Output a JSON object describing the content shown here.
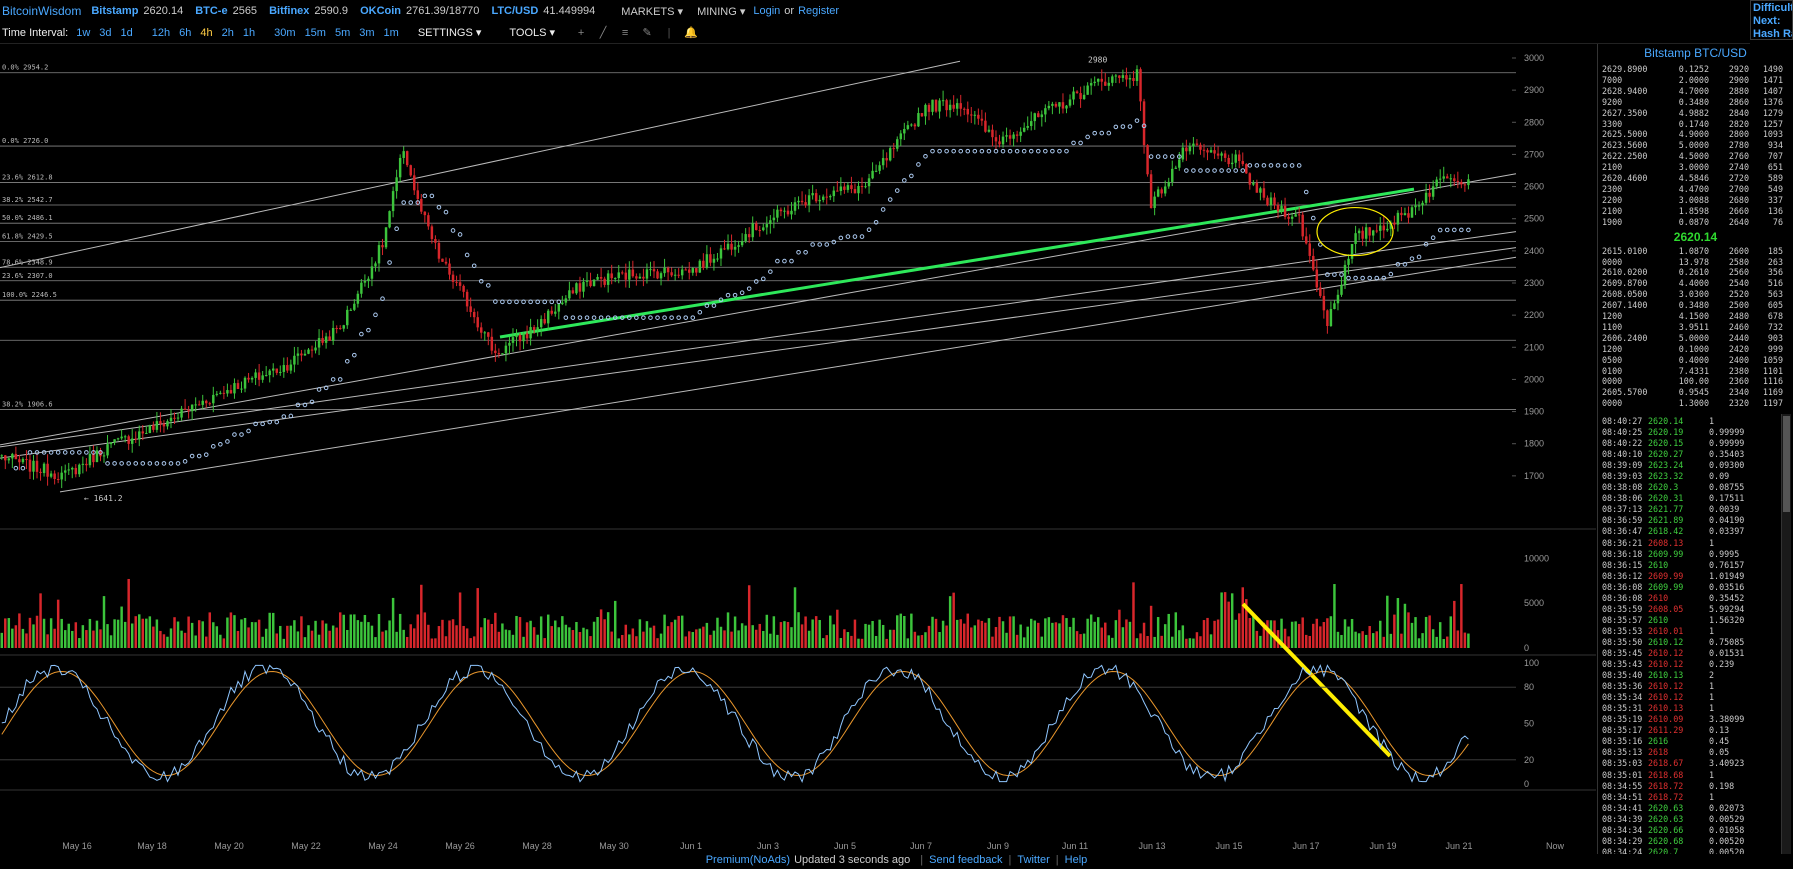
{
  "brand": "BitcoinWisdom",
  "tickers": [
    {
      "name": "Bitstamp",
      "price": "2620.14"
    },
    {
      "name": "BTC-e",
      "price": "2565"
    },
    {
      "name": "Bitfinex",
      "price": "2590.9"
    },
    {
      "name": "OKCoin",
      "price": "2761.39/18770"
    },
    {
      "name": "LTC/USD",
      "price": "41.449994"
    }
  ],
  "menus": {
    "markets": "MARKETS",
    "mining": "MINING",
    "login": "Login",
    "or": "or",
    "register": "Register"
  },
  "difficulty_box": {
    "l1": "Difficulty",
    "l2": "Next:",
    "l3": "Hash Rate"
  },
  "toolbar": {
    "time_interval_label": "Time Interval:",
    "intervals": [
      "1w",
      "3d",
      "1d",
      "12h",
      "6h",
      "4h",
      "2h",
      "1h",
      "30m",
      "15m",
      "5m",
      "3m",
      "1m"
    ],
    "selected_interval": "4h",
    "settings_label": "SETTINGS",
    "tools_label": "TOOLS"
  },
  "colors": {
    "up": "#3cc43c",
    "down": "#d8262b",
    "blue": "#4aa8ff",
    "green_trend": "#2ee85a",
    "yellow": "#ffee00",
    "grid": "#777777"
  },
  "chart_data": {
    "type": "candlestick",
    "exchange_pair": "Bitstamp BTC/USD",
    "price_axis": {
      "min": 1600,
      "max": 3000,
      "ticks": [
        1700,
        1800,
        1900,
        2000,
        2100,
        2200,
        2300,
        2400,
        2500,
        2600,
        2700,
        2800,
        2900,
        3000
      ]
    },
    "x_labels": [
      "May 16",
      "May 18",
      "May 20",
      "May 22",
      "May 24",
      "May 26",
      "May 28",
      "May 30",
      "Jun 1",
      "Jun 3",
      "Jun 5",
      "Jun 7",
      "Jun 9",
      "Jun 11",
      "Jun 13",
      "Jun 15",
      "Jun 17",
      "Jun 19",
      "Jun 21",
      "Now"
    ],
    "fib_levels": [
      {
        "label": "0.0% 2954.2",
        "value": 2954.2
      },
      {
        "label": "0.0% 2726.0",
        "value": 2726.0
      },
      {
        "label": "23.6% 2612.8",
        "value": 2612.8
      },
      {
        "label": "38.2% 2542.7",
        "value": 2542.7
      },
      {
        "label": "50.0% 2486.1",
        "value": 2486.1
      },
      {
        "label": "61.8% 2429.5",
        "value": 2429.5
      },
      {
        "label": "78.6% 2348.9",
        "value": 2348.9
      },
      {
        "label": "23.6% 2307.0",
        "value": 2307.0
      },
      {
        "label": "100.0% 2246.5",
        "value": 2246.5
      },
      {
        "label": "",
        "value": 2122.0
      },
      {
        "label": "38.2% 1906.6",
        "value": 1906.6
      }
    ],
    "annotations": {
      "high": "2980",
      "low": "← 1641.2"
    },
    "anchors": [
      [
        0,
        1760
      ],
      [
        8,
        1730
      ],
      [
        18,
        1700
      ],
      [
        30,
        1790
      ],
      [
        45,
        1860
      ],
      [
        62,
        1960
      ],
      [
        80,
        2040
      ],
      [
        96,
        2160
      ],
      [
        108,
        2420
      ],
      [
        114,
        2720
      ],
      [
        118,
        2550
      ],
      [
        124,
        2380
      ],
      [
        132,
        2240
      ],
      [
        140,
        2080
      ],
      [
        150,
        2150
      ],
      [
        165,
        2300
      ],
      [
        180,
        2330
      ],
      [
        196,
        2340
      ],
      [
        212,
        2460
      ],
      [
        230,
        2570
      ],
      [
        245,
        2600
      ],
      [
        262,
        2850
      ],
      [
        272,
        2860
      ],
      [
        282,
        2740
      ],
      [
        298,
        2840
      ],
      [
        312,
        2930
      ],
      [
        322,
        2950
      ],
      [
        326,
        2540
      ],
      [
        336,
        2720
      ],
      [
        350,
        2680
      ],
      [
        358,
        2560
      ],
      [
        368,
        2500
      ],
      [
        376,
        2180
      ],
      [
        384,
        2440
      ],
      [
        398,
        2510
      ],
      [
        410,
        2640
      ],
      [
        416,
        2620
      ]
    ],
    "volume_axis": {
      "ticks": [
        0,
        5000,
        10000
      ],
      "max": 12500
    },
    "stoch_axis": {
      "ticks": [
        0,
        20,
        50,
        80,
        100
      ]
    }
  },
  "orderbook": {
    "title": "Bitstamp BTC/USD",
    "asks": [
      [
        "2629.8900",
        "0.1252",
        "2920",
        "1490"
      ],
      [
        "7000",
        "2.0000",
        "2900",
        "1471"
      ],
      [
        "2628.9400",
        "4.7000",
        "2880",
        "1407"
      ],
      [
        "9200",
        "0.3480",
        "2860",
        "1376"
      ],
      [
        "2627.3500",
        "4.9882",
        "2840",
        "1279"
      ],
      [
        "3300",
        "0.1740",
        "2820",
        "1257"
      ],
      [
        "2625.5000",
        "4.9000",
        "2800",
        "1093"
      ],
      [
        "2623.5600",
        "5.0000",
        "2780",
        "934"
      ],
      [
        "2622.2500",
        "4.5000",
        "2760",
        "707"
      ],
      [
        "2100",
        "3.0000",
        "2740",
        "651"
      ],
      [
        "2620.4600",
        "4.5846",
        "2720",
        "589"
      ],
      [
        "2300",
        "4.4700",
        "2700",
        "549"
      ],
      [
        "2200",
        "3.0088",
        "2680",
        "337"
      ],
      [
        "2100",
        "1.8598",
        "2660",
        "136"
      ],
      [
        "1900",
        "0.0870",
        "2640",
        "76"
      ]
    ],
    "last_price": "2620.14",
    "bids": [
      [
        "2615.0100",
        "1.0870",
        "2600",
        "185"
      ],
      [
        "0000",
        "13.978",
        "2580",
        "263"
      ],
      [
        "2610.0200",
        "0.2610",
        "2560",
        "356"
      ],
      [
        "2609.8700",
        "4.4000",
        "2540",
        "516"
      ],
      [
        "2608.0500",
        "3.0300",
        "2520",
        "563"
      ],
      [
        "2607.1400",
        "0.3480",
        "2500",
        "605"
      ],
      [
        "1200",
        "4.1500",
        "2480",
        "678"
      ],
      [
        "1100",
        "3.9511",
        "2460",
        "732"
      ],
      [
        "2606.2400",
        "5.0000",
        "2440",
        "903"
      ],
      [
        "1200",
        "0.1000",
        "2420",
        "999"
      ],
      [
        "0500",
        "0.4000",
        "2400",
        "1059"
      ],
      [
        "0100",
        "7.4331",
        "2380",
        "1101"
      ],
      [
        "0000",
        "100.00",
        "2360",
        "1116"
      ],
      [
        "2605.5700",
        "0.9545",
        "2340",
        "1169"
      ],
      [
        "0000",
        "1.3000",
        "2320",
        "1197"
      ]
    ]
  },
  "trades": [
    [
      "08:40:27",
      "2620.14",
      "g",
      "1"
    ],
    [
      "08:40:25",
      "2620.19",
      "g",
      "0.99999"
    ],
    [
      "08:40:22",
      "2620.15",
      "g",
      "0.99999"
    ],
    [
      "08:40:10",
      "2620.27",
      "g",
      "0.35403"
    ],
    [
      "08:39:09",
      "2623.24",
      "g",
      "0.09300"
    ],
    [
      "08:39:03",
      "2623.32",
      "g",
      "0.09"
    ],
    [
      "08:38:08",
      "2620.3",
      "g",
      "0.08755"
    ],
    [
      "08:38:06",
      "2620.31",
      "g",
      "0.17511"
    ],
    [
      "08:37:13",
      "2621.77",
      "g",
      "0.0039"
    ],
    [
      "08:36:59",
      "2621.89",
      "g",
      "0.04190"
    ],
    [
      "08:36:47",
      "2618.42",
      "g",
      "0.03397"
    ],
    [
      "08:36:21",
      "2608.13",
      "r",
      "1"
    ],
    [
      "08:36:18",
      "2609.99",
      "g",
      "0.9995"
    ],
    [
      "08:36:15",
      "2610",
      "g",
      "0.76157"
    ],
    [
      "08:36:12",
      "2609.99",
      "r",
      "1.01949"
    ],
    [
      "08:36:08",
      "2609.99",
      "g",
      "0.03516"
    ],
    [
      "08:36:08",
      "2610",
      "r",
      "0.35452"
    ],
    [
      "08:35:59",
      "2608.05",
      "r",
      "5.99294"
    ],
    [
      "08:35:57",
      "2610",
      "g",
      "1.56320"
    ],
    [
      "08:35:53",
      "2610.01",
      "r",
      "1"
    ],
    [
      "08:35:50",
      "2610.12",
      "g",
      "0.75085"
    ],
    [
      "08:35:45",
      "2610.12",
      "r",
      "0.01531"
    ],
    [
      "08:35:43",
      "2610.12",
      "r",
      "0.239"
    ],
    [
      "08:35:40",
      "2610.13",
      "g",
      "2"
    ],
    [
      "08:35:36",
      "2610.12",
      "r",
      "1"
    ],
    [
      "08:35:34",
      "2610.12",
      "r",
      "1"
    ],
    [
      "08:35:31",
      "2610.13",
      "r",
      "1"
    ],
    [
      "08:35:19",
      "2610.09",
      "r",
      "3.38099"
    ],
    [
      "08:35:17",
      "2611.29",
      "r",
      "0.13"
    ],
    [
      "08:35:16",
      "2616",
      "g",
      "0.45"
    ],
    [
      "08:35:13",
      "2618",
      "r",
      "0.05"
    ],
    [
      "08:35:03",
      "2618.67",
      "r",
      "3.40923"
    ],
    [
      "08:35:01",
      "2618.68",
      "r",
      "1"
    ],
    [
      "08:34:55",
      "2618.72",
      "r",
      "0.198"
    ],
    [
      "08:34:51",
      "2618.72",
      "r",
      "1"
    ],
    [
      "08:34:41",
      "2620.63",
      "g",
      "0.02073"
    ],
    [
      "08:34:39",
      "2620.63",
      "g",
      "0.00529"
    ],
    [
      "08:34:34",
      "2620.66",
      "g",
      "0.01058"
    ],
    [
      "08:34:29",
      "2620.68",
      "g",
      "0.00520"
    ],
    [
      "08:34:24",
      "2620.7",
      "g",
      "0.00520"
    ],
    [
      "08:33:58",
      "2621.63",
      "g",
      "1.06917"
    ],
    [
      "08:33:54",
      "2621.74",
      "g",
      "0.087"
    ]
  ],
  "footer": {
    "premium": "Premium(NoAds)",
    "status": "Updated 3 seconds ago",
    "feedback": "Send feedback",
    "twitter": "Twitter",
    "help": "Help"
  }
}
